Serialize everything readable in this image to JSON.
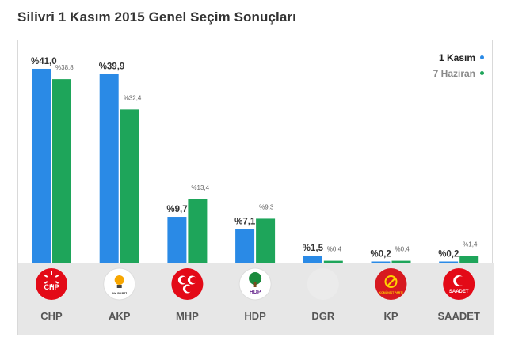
{
  "page": {
    "title": "Silivri 1 Kasım 2015 Genel Seçim Sonuçları"
  },
  "colors": {
    "series_1": "#2a8ae6",
    "series_2": "#1ea55a",
    "footer_bg": "#e7e7e7"
  },
  "chart_data": {
    "type": "bar",
    "categories": [
      "CHP",
      "AKP",
      "MHP",
      "HDP",
      "DGR",
      "KP",
      "SAADET"
    ],
    "series": [
      {
        "name": "1 Kasım",
        "values": [
          41.0,
          39.9,
          9.7,
          7.1,
          1.5,
          0.2,
          0.2
        ],
        "labels": [
          "%41,0",
          "%39,9",
          "%9,7",
          "%7,1",
          "%1,5",
          "%0,2",
          "%0,2"
        ]
      },
      {
        "name": "7 Haziran",
        "values": [
          38.8,
          32.4,
          13.4,
          9.3,
          0.4,
          0.4,
          1.4
        ],
        "labels": [
          "%38,8",
          "%32,4",
          "%13,4",
          "%9,3",
          "%0,4",
          "%0,4",
          "%1,4"
        ]
      }
    ],
    "ylim": [
      0,
      42
    ],
    "legend": "top-right",
    "grid": false
  },
  "logos": [
    {
      "category": "CHP",
      "icon": "chp-logo",
      "text": "CHP"
    },
    {
      "category": "AKP",
      "icon": "akp-logo",
      "text": "AK PARTİ"
    },
    {
      "category": "MHP",
      "icon": "mhp-logo",
      "text": ""
    },
    {
      "category": "HDP",
      "icon": "hdp-logo",
      "text": "HDP"
    },
    {
      "category": "DGR",
      "icon": "dgr-logo",
      "text": ""
    },
    {
      "category": "KP",
      "icon": "kp-logo",
      "text": "KOMÜNİST PARTİ"
    },
    {
      "category": "SAADET",
      "icon": "saadet-logo",
      "text": "SAADET"
    }
  ]
}
